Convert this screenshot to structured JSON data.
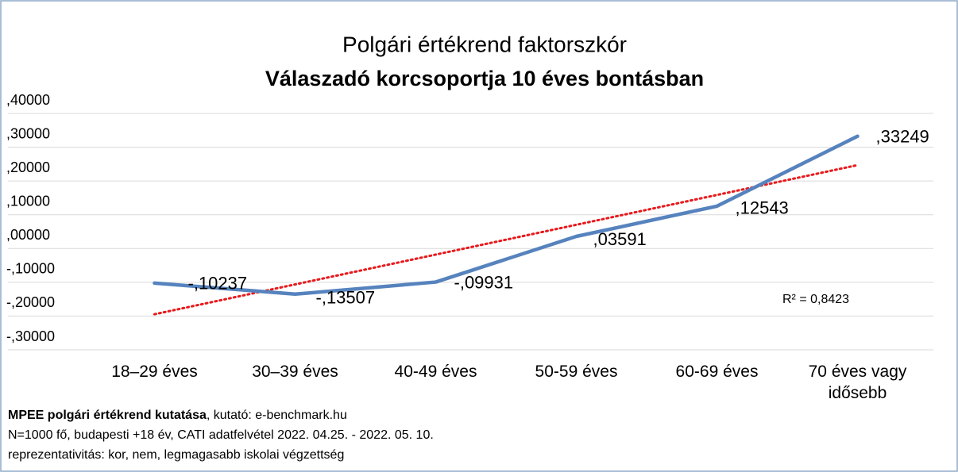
{
  "chart_data": {
    "type": "line",
    "title": "Polgári értékrend faktorszkór",
    "subtitle": "Válaszadó korcsoportja 10 éves bontásban",
    "categories": [
      "18–29 éves",
      "30–39 éves",
      "40-49 éves",
      "50-59 éves",
      "60-69 éves",
      "70 éves vagy idősebb"
    ],
    "series": [
      {
        "name": "Polgári értékrend faktorszkór",
        "color": "#5683be",
        "values": [
          -0.10237,
          -0.13507,
          -0.09931,
          0.03591,
          0.12543,
          0.33249
        ],
        "value_labels": [
          "-,10237",
          "-,13507",
          "-,09931",
          ",03591",
          ",12543",
          ",33249"
        ]
      }
    ],
    "trendline": {
      "kind": "linear",
      "color": "#e8191c",
      "annotation": "R² = 0,8423"
    },
    "ylim": [
      -0.3,
      0.4
    ],
    "yticks": [
      {
        "value": 0.4,
        "label": ",40000"
      },
      {
        "value": 0.3,
        "label": ",30000"
      },
      {
        "value": 0.2,
        "label": ",20000"
      },
      {
        "value": 0.1,
        "label": ",10000"
      },
      {
        "value": 0,
        "label": ",00000"
      },
      {
        "value": -0.1,
        "label": "-,10000"
      },
      {
        "value": -0.2,
        "label": "-,20000"
      },
      {
        "value": -0.3,
        "label": "-,30000"
      }
    ],
    "grid": true,
    "footnote": {
      "bold": "MPEE polgári értékrend kutatása",
      "rest": ", kutató: e-benchmark.hu",
      "lines": [
        "N=1000 fő, budapesti +18 év, CATI adatfelvétel 2022. 04.25. - 2022. 05. 10.",
        "reprezentativitás: kor, nem, legmagasabb iskolai végzettség"
      ]
    }
  }
}
